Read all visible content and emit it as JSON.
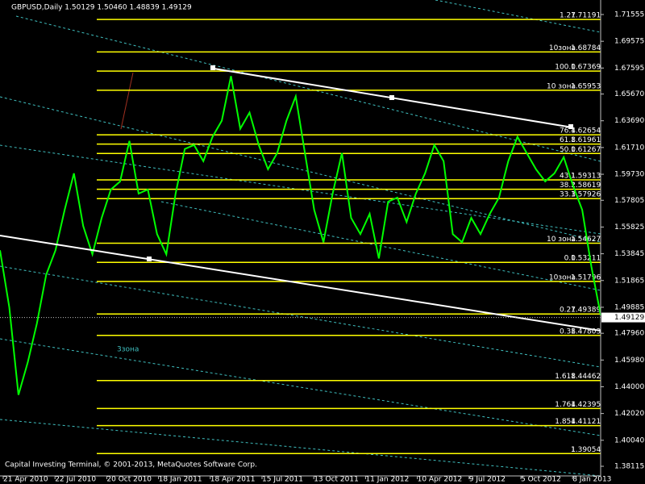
{
  "chart_data": {
    "type": "line",
    "title": "GBPUSD,Daily  1.50129 1.50460 1.48839 1.49129",
    "footer": "Capital Investing Terminal, © 2001-2013, MetaQuotes Software Corp.",
    "annotation": "3зона",
    "last_price": 1.49129,
    "ylim": [
      1.374,
      1.7263
    ],
    "yticks": [
      1.71555,
      1.69575,
      1.67595,
      {
        "value": 1.6567,
        "label": "1.65670"
      },
      {
        "value": 1.6369,
        "label": "1.63690"
      },
      {
        "value": 1.6171,
        "label": "1.61710"
      },
      {
        "value": 1.5973,
        "label": "1.59730"
      },
      1.57805,
      1.55825,
      1.53845,
      1.51865,
      1.49885,
      {
        "value": 1.4796,
        "label": "1.47960"
      },
      {
        "value": 1.4598,
        "label": "1.45980"
      },
      {
        "value": 1.44,
        "label": "1.44000"
      },
      {
        "value": 1.4202,
        "label": "1.42020"
      },
      {
        "value": 1.4004,
        "label": "1.40040"
      },
      1.38115
    ],
    "xticks": [
      "21 Apr 2010",
      "22 Jul 2010",
      "20 Oct 2010",
      "18 Jan 2011",
      "18 Apr 2011",
      "15 Jul 2011",
      "13 Oct 2011",
      "11 Jan 2012",
      "10 Apr 2012",
      "9 Jul 2012",
      "5 Oct 2012",
      "8 Jan 2013"
    ],
    "series": [
      {
        "name": "GBPUSD",
        "color": "#00ff00",
        "values": [
          1.541,
          1.499,
          1.434,
          1.458,
          1.487,
          1.523,
          1.541,
          1.571,
          1.598,
          1.559,
          1.538,
          1.565,
          1.586,
          1.592,
          1.622,
          1.583,
          1.586,
          1.553,
          1.538,
          1.583,
          1.616,
          1.619,
          1.607,
          1.625,
          1.637,
          1.67,
          1.631,
          1.643,
          1.619,
          1.601,
          1.613,
          1.637,
          1.655,
          1.613,
          1.571,
          1.547,
          1.583,
          1.613,
          1.565,
          1.553,
          1.568,
          1.535,
          1.577,
          1.58,
          1.562,
          1.583,
          1.598,
          1.619,
          1.607,
          1.553,
          1.547,
          1.565,
          1.553,
          1.568,
          1.58,
          1.607,
          1.625,
          1.613,
          1.601,
          1.592,
          1.598,
          1.61,
          1.589,
          1.571,
          1.529,
          1.493
        ]
      }
    ],
    "level_color": "#ffff00",
    "levels": [
      {
        "label": "1.27",
        "value": 1.71191
      },
      {
        "label": "10зона",
        "value": 1.68784
      },
      {
        "label": "100.0",
        "value": 1.67369
      },
      {
        "label": "10 зона",
        "value": 1.65953
      },
      {
        "label": "76.4",
        "value": 1.62654
      },
      {
        "label": "61.8",
        "value": 1.61961
      },
      {
        "label": "50.0",
        "value": 1.61267
      },
      {
        "label": "43.1",
        "value": 1.59313
      },
      {
        "label": "38.2",
        "value": 1.58619
      },
      {
        "label": "33.3",
        "value": 1.57926
      },
      {
        "label": "10 зона",
        "value": 1.54627
      },
      {
        "label": "0.0",
        "value": 1.53211
      },
      {
        "label": "10зона",
        "value": 1.51796
      },
      {
        "label": "0.27",
        "value": 1.49389
      },
      {
        "label": "0.38",
        "value": 1.47803
      },
      {
        "label": "1.618",
        "value": 1.44462
      },
      {
        "label": "1.764",
        "value": 1.42395
      },
      {
        "label": "1.854",
        "value": 1.41121
      },
      {
        "label": "1",
        "value": 1.39054
      }
    ]
  }
}
